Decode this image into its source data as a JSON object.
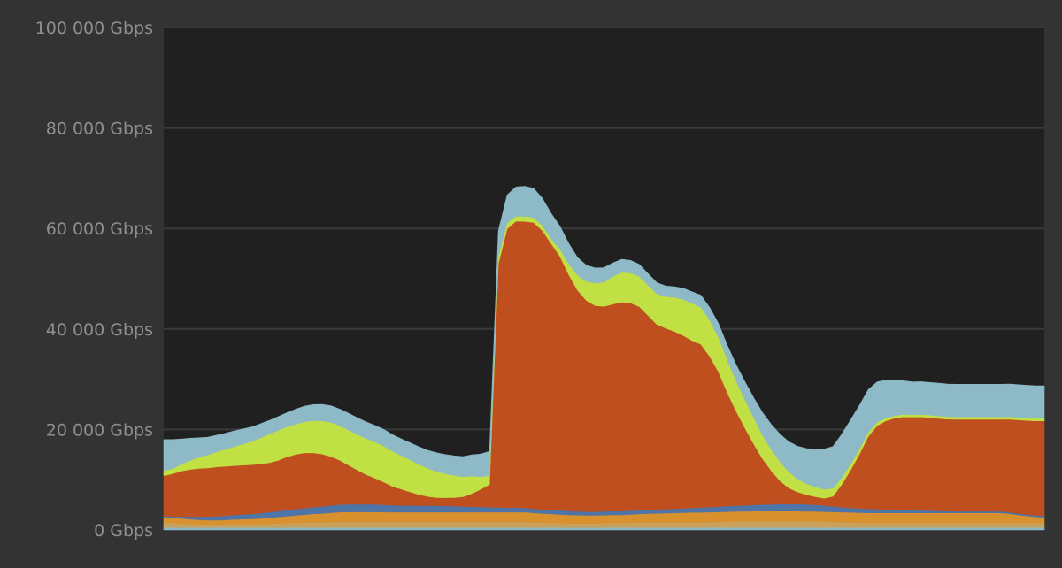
{
  "chart_data": {
    "type": "area",
    "stacked": true,
    "title": "",
    "xlabel": "",
    "ylabel": "",
    "ylim": [
      0,
      100000
    ],
    "yticks": [
      {
        "value": 0,
        "label": "0 Gbps"
      },
      {
        "value": 20000,
        "label": "20 000 Gbps"
      },
      {
        "value": 40000,
        "label": "40 000 Gbps"
      },
      {
        "value": 60000,
        "label": "60 000 Gbps"
      },
      {
        "value": 80000,
        "label": "80 000 Gbps"
      },
      {
        "value": 100000,
        "label": "100 000 Gbps"
      }
    ],
    "grid": true,
    "legend": "none",
    "x": [
      0,
      1,
      2,
      3,
      4,
      5,
      6,
      7,
      8,
      9,
      10,
      11,
      12,
      13,
      14,
      15,
      16,
      17,
      18,
      19,
      20,
      21,
      22,
      23,
      24,
      25,
      26,
      27,
      28,
      29,
      30,
      31,
      32,
      33,
      34,
      35,
      36,
      37,
      38,
      39,
      40,
      41,
      42,
      43,
      44,
      45,
      46,
      47,
      48,
      49,
      50,
      51,
      52,
      53,
      54,
      55,
      56,
      57,
      58,
      59,
      60,
      61,
      62,
      63,
      64,
      65,
      66,
      67,
      68,
      69,
      70,
      71,
      72,
      73,
      74,
      75,
      76,
      77,
      78,
      79,
      80,
      81,
      82,
      83,
      84,
      85,
      86,
      87,
      88,
      89,
      90,
      91,
      92,
      93,
      94,
      95,
      96,
      97,
      98,
      99,
      100
    ],
    "series": [
      {
        "color": "#8eb9c6",
        "values": [
          500,
          500,
          500,
          500,
          500,
          500,
          500,
          500,
          500,
          500,
          500,
          500,
          500,
          500,
          500,
          500,
          500,
          500,
          500,
          500,
          500,
          500,
          500,
          500,
          500,
          500,
          500,
          500,
          500,
          500,
          500,
          500,
          500,
          500,
          500,
          500,
          500,
          500,
          500,
          500,
          500,
          500,
          500,
          500,
          500,
          500,
          500,
          500,
          500,
          500,
          500,
          500,
          500,
          500,
          500,
          500,
          500,
          500,
          500,
          500,
          500,
          500,
          500,
          500,
          500,
          500,
          500,
          500,
          500,
          500,
          500,
          500,
          500,
          500,
          500,
          500,
          500,
          500,
          500,
          500,
          500,
          500,
          500,
          500,
          500,
          500,
          500,
          500,
          500,
          500,
          500,
          500,
          500,
          500,
          500,
          500,
          500,
          500,
          500,
          500,
          500
        ]
      },
      {
        "color": "#c9a15a",
        "values": [
          1000,
          900,
          800,
          700,
          650,
          600,
          600,
          650,
          700,
          700,
          700,
          700,
          750,
          800,
          850,
          900,
          950,
          1000,
          1000,
          1050,
          1100,
          1100,
          1100,
          1100,
          1100,
          1100,
          1100,
          1100,
          1100,
          1100,
          1100,
          1100,
          1100,
          1100,
          1100,
          1100,
          1100,
          1100,
          1100,
          1100,
          1100,
          1100,
          1000,
          950,
          900,
          850,
          800,
          800,
          800,
          800,
          850,
          900,
          900,
          950,
          1000,
          1000,
          1000,
          1000,
          1000,
          1000,
          1000,
          1000,
          1050,
          1100,
          1150,
          1200,
          1200,
          1250,
          1250,
          1250,
          1250,
          1250,
          1250,
          1200,
          1200,
          1150,
          1100,
          1050,
          1000,
          950,
          900,
          900,
          900,
          900,
          900,
          900,
          900,
          900,
          900,
          900,
          900,
          900,
          900,
          900,
          900,
          900,
          900,
          900,
          900,
          900,
          900
        ]
      },
      {
        "color": "#d8912d",
        "values": [
          1000,
          1000,
          1000,
          950,
          900,
          850,
          850,
          850,
          900,
          950,
          1000,
          1100,
          1200,
          1300,
          1400,
          1500,
          1600,
          1700,
          1800,
          1900,
          1950,
          2000,
          2000,
          2000,
          2000,
          1950,
          1950,
          1950,
          1950,
          1950,
          1950,
          1950,
          1950,
          1950,
          1950,
          1950,
          1950,
          1950,
          1950,
          1950,
          1950,
          1950,
          1900,
          1850,
          1800,
          1750,
          1700,
          1650,
          1600,
          1600,
          1600,
          1600,
          1600,
          1650,
          1700,
          1750,
          1800,
          1850,
          1900,
          1950,
          2000,
          2000,
          2000,
          2000,
          2000,
          2000,
          2000,
          2000,
          2000,
          2000,
          2000,
          2000,
          2000,
          2000,
          2000,
          2000,
          2000,
          2000,
          2000,
          2000,
          2000,
          2000,
          2000,
          2000,
          2000,
          2000,
          2000,
          2000,
          2000,
          2000,
          2000,
          2000,
          2000,
          2000,
          2000,
          2000,
          1850,
          1600,
          1400,
          1200,
          1100
        ]
      },
      {
        "color": "#4f74a8",
        "values": [
          300,
          300,
          400,
          500,
          600,
          700,
          800,
          850,
          900,
          950,
          1000,
          1050,
          1100,
          1150,
          1200,
          1250,
          1300,
          1350,
          1400,
          1450,
          1500,
          1500,
          1500,
          1500,
          1500,
          1450,
          1400,
          1350,
          1300,
          1300,
          1300,
          1300,
          1250,
          1200,
          1150,
          1100,
          1050,
          1000,
          950,
          900,
          900,
          850,
          800,
          800,
          800,
          800,
          800,
          750,
          750,
          750,
          750,
          750,
          750,
          750,
          750,
          750,
          800,
          800,
          800,
          850,
          900,
          950,
          1000,
          1050,
          1100,
          1150,
          1200,
          1250,
          1300,
          1350,
          1400,
          1400,
          1400,
          1400,
          1300,
          1200,
          1100,
          1000,
          900,
          850,
          800,
          750,
          700,
          650,
          600,
          550,
          500,
          450,
          400,
          350,
          300,
          300,
          300,
          300,
          300,
          300,
          300,
          300,
          300,
          300,
          300
        ]
      },
      {
        "color": "#bf4f1e",
        "values": [
          8000,
          8500,
          9000,
          9400,
          9600,
          9700,
          9800,
          9800,
          9800,
          9800,
          9800,
          9800,
          9850,
          10100,
          10600,
          10900,
          11000,
          10800,
          10400,
          9700,
          8800,
          7800,
          6800,
          5900,
          5200,
          4500,
          3700,
          3200,
          2700,
          2200,
          1800,
          1600,
          1600,
          1700,
          1900,
          2600,
          3500,
          4500,
          48500,
          55500,
          57000,
          57000,
          57000,
          55500,
          53000,
          50500,
          47000,
          44000,
          42000,
          41000,
          40800,
          41200,
          41600,
          41300,
          40500,
          38700,
          36800,
          36000,
          35300,
          34400,
          33300,
          32500,
          30000,
          26800,
          22600,
          18800,
          15400,
          12100,
          9100,
          6700,
          4600,
          3200,
          2400,
          1900,
          1600,
          1450,
          2000,
          4500,
          7500,
          10800,
          14400,
          16600,
          17600,
          18200,
          18500,
          18500,
          18600,
          18500,
          18400,
          18300,
          18300,
          18300,
          18300,
          18300,
          18300,
          18300,
          18500,
          18600,
          18700,
          18800,
          18900
        ]
      },
      {
        "color": "#c1e043",
        "values": [
          1000,
          1000,
          1400,
          1800,
          2200,
          2600,
          3000,
          3400,
          3800,
          4200,
          4600,
          5200,
          5700,
          6000,
          6000,
          6000,
          6200,
          6400,
          6600,
          6800,
          6900,
          7000,
          7100,
          7200,
          7200,
          7200,
          7000,
          6700,
          6400,
          6000,
          5600,
          5200,
          4800,
          4400,
          4000,
          3500,
          2500,
          1800,
          1500,
          1200,
          1000,
          1000,
          1000,
          1000,
          1000,
          1500,
          2200,
          3000,
          3800,
          4500,
          4800,
          5500,
          5900,
          6000,
          6000,
          6000,
          6100,
          6300,
          6800,
          7200,
          7400,
          7400,
          7200,
          6900,
          6500,
          6000,
          5600,
          5200,
          4700,
          4200,
          3800,
          3200,
          2600,
          2200,
          2000,
          1800,
          1600,
          1400,
          1200,
          1000,
          800,
          700,
          600,
          500,
          500,
          500,
          500,
          500,
          500,
          500,
          500,
          500,
          500,
          500,
          500,
          500,
          500,
          500,
          500,
          500,
          500
        ]
      },
      {
        "color": "#8eb9c6",
        "values": [
          6200,
          5800,
          5000,
          4400,
          3900,
          3500,
          3300,
          3200,
          3100,
          3000,
          2900,
          2800,
          2700,
          2700,
          2800,
          3000,
          3100,
          3200,
          3300,
          3300,
          3300,
          3300,
          3300,
          3300,
          3300,
          3300,
          3300,
          3300,
          3400,
          3500,
          3600,
          3700,
          3800,
          3900,
          4000,
          4200,
          4500,
          4800,
          5000,
          5500,
          5800,
          6000,
          5800,
          5400,
          5000,
          4500,
          4000,
          3500,
          3200,
          3000,
          2900,
          2700,
          2600,
          2500,
          2400,
          2300,
          2200,
          2100,
          2100,
          2200,
          2300,
          2400,
          2500,
          2700,
          2900,
          3200,
          3600,
          4000,
          4500,
          5000,
          5500,
          6000,
          6500,
          7000,
          7500,
          8000,
          8300,
          8600,
          8800,
          8700,
          8500,
          8000,
          7500,
          7000,
          6700,
          6500,
          6500,
          6500,
          6500,
          6500,
          6500,
          6500,
          6500,
          6500,
          6500,
          6500,
          6500,
          6500,
          6500,
          6500,
          6500
        ]
      }
    ]
  }
}
